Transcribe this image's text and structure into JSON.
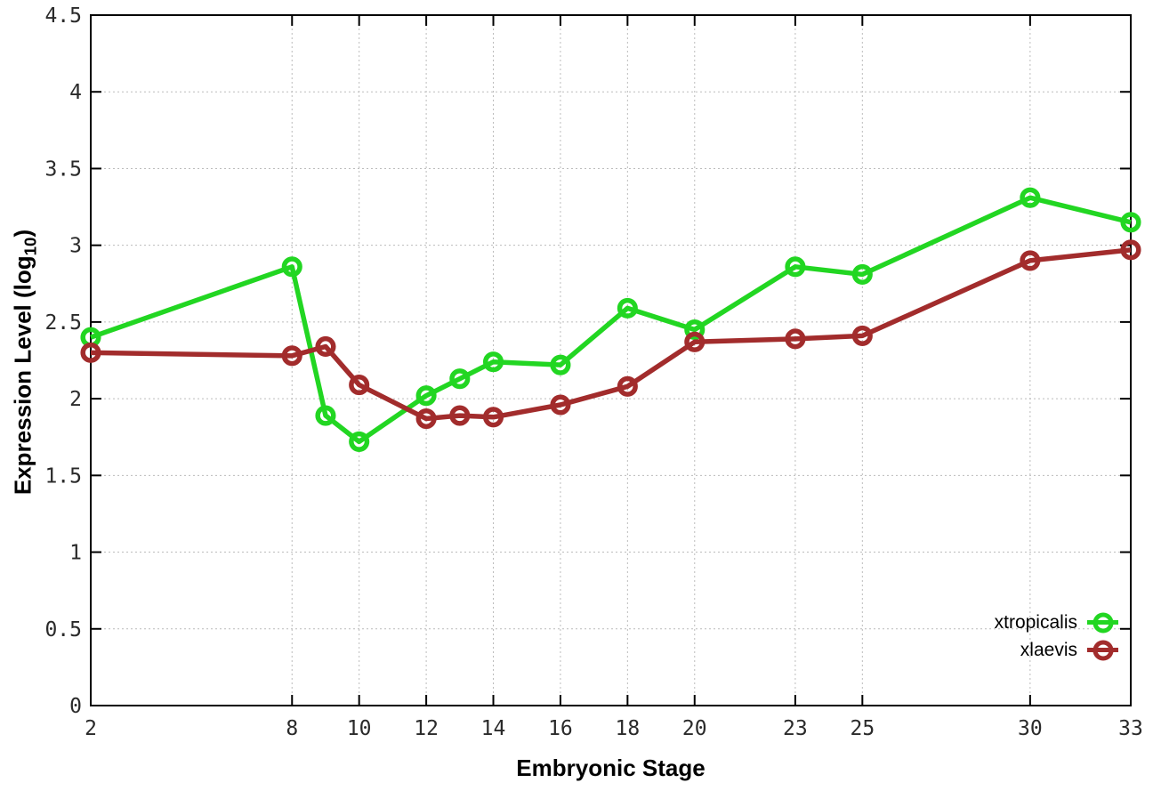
{
  "figure": {
    "background": "#ffffff",
    "border_color": "#000000",
    "grid_color": "#bcbcbc",
    "tick_label_color": "#2a2a2a"
  },
  "axes": {
    "xlabel": "Embryonic Stage",
    "ylabel": "Expression Level (log10)",
    "ylabel_parts": {
      "main": "Expression Level (log",
      "sub": "10",
      "suffix": ")"
    }
  },
  "chart_data": {
    "type": "line",
    "title": "",
    "xlabel": "Embryonic Stage",
    "ylabel": "Expression Level (log10)",
    "x": [
      2,
      8,
      9,
      10,
      12,
      13,
      14,
      16,
      18,
      20,
      23,
      25,
      30,
      33
    ],
    "series": [
      {
        "name": "xtropicalis",
        "color": "#22d622",
        "marker": "open-circle",
        "values": [
          2.4,
          2.86,
          1.89,
          1.72,
          2.02,
          2.13,
          2.24,
          2.22,
          2.59,
          2.45,
          2.86,
          2.81,
          3.31,
          3.15
        ]
      },
      {
        "name": "xlaevis",
        "color": "#a22c2c",
        "marker": "open-circle",
        "values": [
          2.3,
          2.28,
          2.34,
          2.09,
          1.87,
          1.89,
          1.88,
          1.96,
          2.08,
          2.37,
          2.39,
          2.41,
          2.9,
          2.97
        ]
      }
    ],
    "xlim": [
      2,
      33
    ],
    "ylim": [
      0,
      4.5
    ],
    "xticks": [
      2,
      8,
      10,
      12,
      14,
      16,
      18,
      20,
      23,
      25,
      30,
      33
    ],
    "yticks": [
      0,
      0.5,
      1,
      1.5,
      2,
      2.5,
      3,
      3.5,
      4,
      4.5
    ],
    "grid": true,
    "legend_position": "inside bottom-right"
  }
}
